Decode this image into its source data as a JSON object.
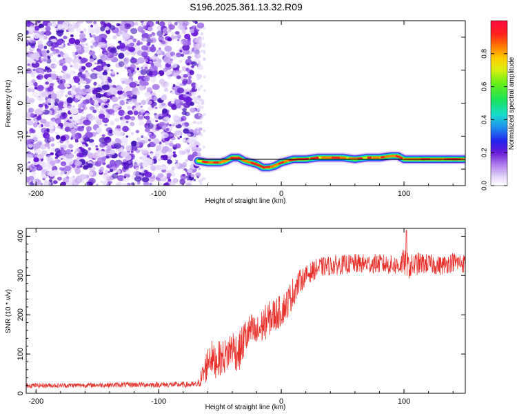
{
  "title": "S196.2025.361.13.32.R09",
  "chart_data": [
    {
      "type": "heatmap",
      "name": "spectrogram",
      "xlabel": "Height of straight line (km)",
      "ylabel": "Frequency (Hz)",
      "xlim": [
        -208,
        150
      ],
      "ylim": [
        -25,
        25
      ],
      "xticks": [
        -200,
        -100,
        0,
        100
      ],
      "yticks": [
        20,
        10,
        0,
        -10,
        -20
      ],
      "xtick_labels": [
        "-200",
        "-100",
        "0",
        "100"
      ],
      "ytick_labels": [
        "20",
        "10",
        "0",
        "-10",
        "-20"
      ],
      "noise_region_x": [
        -208,
        -68
      ],
      "signal_start_x": -68,
      "signal_track": {
        "x": [
          -68,
          -60,
          -50,
          -45,
          -40,
          -35,
          -30,
          -25,
          -20,
          -15,
          -10,
          -5,
          0,
          5,
          10,
          20,
          30,
          40,
          50,
          60,
          70,
          80,
          90,
          95,
          100,
          110,
          120,
          130,
          140,
          150
        ],
        "frequency_hz": [
          -17.5,
          -18,
          -18,
          -17.5,
          -16.5,
          -16.5,
          -17.5,
          -18,
          -18.5,
          -19.5,
          -19.5,
          -19,
          -18,
          -17.5,
          -17,
          -17,
          -16.5,
          -16.5,
          -16.5,
          -17,
          -16.5,
          -16.5,
          -16,
          -16,
          -17,
          -17,
          -17,
          -17,
          -17,
          -17
        ]
      },
      "reference_line_hz": {
        "x": [
          -68,
          150
        ],
        "values": [
          -17,
          -17
        ]
      },
      "colorbar": {
        "label": "Normalized spectral amplitude",
        "range": [
          0.0,
          1.0
        ],
        "ticks": [
          0.0,
          0.2,
          0.4,
          0.6,
          0.8
        ],
        "tick_labels": [
          "0.0",
          "0.2",
          "0.4",
          "0.6",
          "0.8"
        ]
      }
    },
    {
      "type": "line",
      "name": "snr",
      "xlabel": "Height of straight line (km)",
      "ylabel": "SNR (10 * v/v)",
      "xlim": [
        -208,
        150
      ],
      "ylim": [
        0,
        420
      ],
      "xticks": [
        -200,
        -100,
        0,
        100
      ],
      "yticks": [
        0,
        100,
        200,
        300,
        400
      ],
      "xtick_labels": [
        "-200",
        "-100",
        "0",
        "100"
      ],
      "ytick_labels": [
        "0",
        "100",
        "200",
        "300",
        "400"
      ],
      "series": [
        {
          "name": "SNR",
          "color": "#e8302a",
          "x": [
            -208,
            -180,
            -150,
            -120,
            -90,
            -68,
            -62,
            -58,
            -55,
            -50,
            -45,
            -40,
            -35,
            -30,
            -25,
            -20,
            -15,
            -10,
            -5,
            0,
            5,
            10,
            15,
            20,
            30,
            40,
            60,
            80,
            95,
            100,
            105,
            110,
            120,
            130,
            140,
            150
          ],
          "values": [
            20,
            20,
            21,
            22,
            22,
            22,
            60,
            100,
            80,
            90,
            95,
            120,
            100,
            140,
            160,
            150,
            175,
            190,
            200,
            210,
            230,
            260,
            285,
            300,
            320,
            325,
            330,
            330,
            325,
            335,
            320,
            330,
            330,
            325,
            335,
            330
          ],
          "noise_amplitude": [
            6,
            6,
            6,
            7,
            7,
            8,
            40,
            45,
            45,
            45,
            45,
            50,
            50,
            50,
            45,
            45,
            45,
            45,
            45,
            40,
            40,
            40,
            30,
            25,
            25,
            25,
            25,
            25,
            25,
            35,
            30,
            30,
            25,
            25,
            25,
            25
          ],
          "peak": {
            "x": 102,
            "value": 415
          }
        }
      ]
    }
  ]
}
